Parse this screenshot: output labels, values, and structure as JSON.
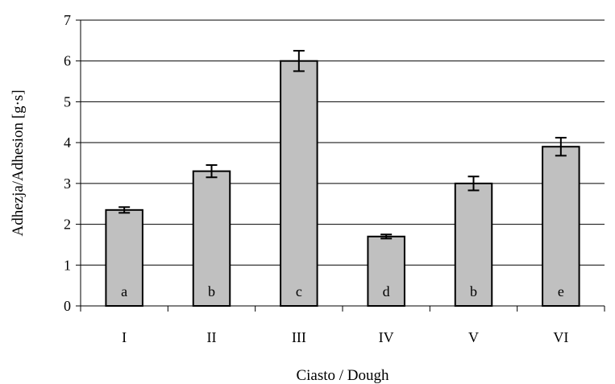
{
  "chart_data": {
    "type": "bar",
    "categories": [
      "I",
      "II",
      "III",
      "IV",
      "V",
      "VI"
    ],
    "values": [
      2.35,
      3.3,
      6.0,
      1.7,
      3.0,
      3.9
    ],
    "errors": [
      0.07,
      0.15,
      0.25,
      0.05,
      0.17,
      0.22
    ],
    "bar_labels": [
      "a",
      "b",
      "c",
      "d",
      "b",
      "e"
    ],
    "title": "",
    "xlabel": "Ciasto / Dough",
    "ylabel": "Adhezja/Adhesion [g·s]",
    "ylim": [
      0,
      7
    ],
    "yticks": [
      0,
      1,
      2,
      3,
      4,
      5,
      6,
      7
    ],
    "grid": "horizontal",
    "bar_color": "#c0c0c0",
    "legend": "none"
  }
}
